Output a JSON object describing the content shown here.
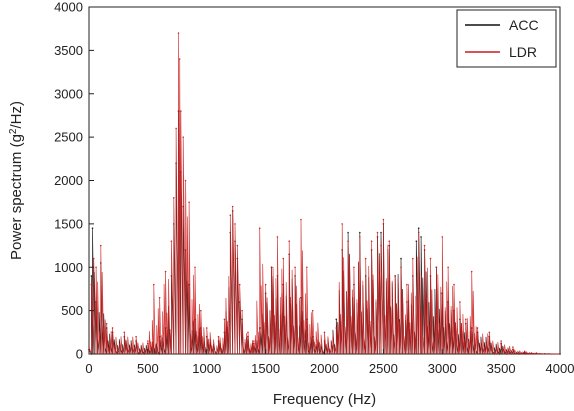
{
  "chart_data": {
    "type": "line",
    "title": "",
    "xlabel": "Frequency (Hz)",
    "ylabel_prefix": "Power spectrum (g",
    "ylabel_sup": "2",
    "ylabel_suffix": "/Hz)",
    "xlim": [
      0,
      4000
    ],
    "ylim": [
      0,
      4000
    ],
    "x_ticks": [
      0,
      500,
      1000,
      1500,
      2000,
      2500,
      3000,
      3500,
      4000
    ],
    "y_ticks": [
      0,
      500,
      1000,
      1500,
      2000,
      2500,
      3000,
      3500,
      4000
    ],
    "x_tick_labels": [
      "0",
      "500",
      "1000",
      "1500",
      "2000",
      "2500",
      "3000",
      "3500",
      "4000"
    ],
    "y_tick_labels": [
      "0",
      "500",
      "1000",
      "1500",
      "2000",
      "2500",
      "3000",
      "3500",
      "4000"
    ],
    "grid": false,
    "legend_position": "top-right",
    "series": [
      {
        "name": "ACC",
        "color": "#111111",
        "x": [
          0,
          20,
          30,
          60,
          100,
          150,
          200,
          300,
          400,
          500,
          600,
          650,
          700,
          720,
          740,
          760,
          780,
          800,
          820,
          850,
          900,
          950,
          1000,
          1100,
          1150,
          1200,
          1220,
          1240,
          1260,
          1280,
          1300,
          1350,
          1400,
          1450,
          1500,
          1550,
          1600,
          1650,
          1700,
          1750,
          1800,
          1850,
          1900,
          2000,
          2100,
          2150,
          2200,
          2250,
          2300,
          2350,
          2400,
          2450,
          2480,
          2500,
          2550,
          2600,
          2650,
          2700,
          2750,
          2780,
          2800,
          2820,
          2850,
          2900,
          2950,
          3000,
          3050,
          3100,
          3150,
          3200,
          3250,
          3300,
          3400,
          3500,
          3600,
          3700,
          3800,
          4000
        ],
        "y": [
          50,
          900,
          1450,
          600,
          1050,
          300,
          250,
          200,
          150,
          120,
          200,
          300,
          900,
          1500,
          2200,
          2800,
          2100,
          1700,
          1200,
          800,
          400,
          300,
          200,
          150,
          250,
          1400,
          1650,
          1300,
          1100,
          600,
          400,
          200,
          120,
          300,
          700,
          1000,
          900,
          800,
          1150,
          900,
          650,
          400,
          200,
          150,
          400,
          1200,
          1400,
          800,
          1400,
          900,
          1200,
          1350,
          1400,
          1500,
          1250,
          900,
          1100,
          600,
          900,
          1300,
          1450,
          1350,
          1200,
          900,
          1000,
          700,
          600,
          500,
          400,
          350,
          300,
          250,
          200,
          120,
          50,
          20,
          10,
          0
        ]
      },
      {
        "name": "LDR",
        "color": "#cc1a1a",
        "x": [
          0,
          20,
          40,
          60,
          100,
          150,
          200,
          300,
          400,
          500,
          550,
          600,
          650,
          700,
          720,
          740,
          760,
          770,
          780,
          800,
          820,
          850,
          900,
          950,
          1000,
          1100,
          1150,
          1200,
          1220,
          1240,
          1260,
          1280,
          1300,
          1350,
          1400,
          1450,
          1500,
          1550,
          1600,
          1650,
          1700,
          1750,
          1800,
          1850,
          1900,
          2000,
          2100,
          2150,
          2200,
          2250,
          2300,
          2350,
          2400,
          2450,
          2480,
          2500,
          2550,
          2600,
          2650,
          2700,
          2750,
          2800,
          2850,
          2900,
          2950,
          3000,
          3050,
          3100,
          3150,
          3200,
          3250,
          3300,
          3400,
          3500,
          3600,
          3700,
          3800,
          4000
        ],
        "y": [
          80,
          800,
          1100,
          1000,
          1250,
          350,
          300,
          250,
          200,
          150,
          800,
          650,
          950,
          1300,
          1800,
          2600,
          3700,
          3400,
          2800,
          2500,
          2000,
          1750,
          1000,
          500,
          300,
          200,
          400,
          1600,
          1700,
          1500,
          1250,
          800,
          500,
          250,
          150,
          1450,
          800,
          1000,
          1350,
          1100,
          1300,
          1000,
          1550,
          1000,
          500,
          250,
          300,
          1500,
          1300,
          1000,
          1350,
          1100,
          1300,
          1400,
          1250,
          1550,
          1300,
          900,
          1000,
          800,
          1100,
          1400,
          1250,
          1100,
          1000,
          1350,
          1000,
          800,
          600,
          400,
          950,
          300,
          250,
          150,
          80,
          30,
          10,
          0
        ]
      }
    ]
  }
}
